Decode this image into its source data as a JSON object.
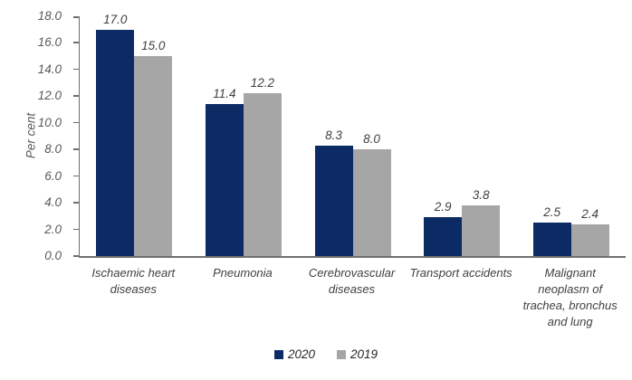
{
  "chart_data": {
    "type": "bar",
    "title": "",
    "ylabel": "Per cent",
    "xlabel": "",
    "ylim": [
      0,
      18
    ],
    "ytick_step": 2,
    "ytick_decimals": 1,
    "value_label_decimals": 1,
    "grid": false,
    "legend_position": "bottom",
    "categories": [
      "Ischaemic heart diseases",
      "Pneumonia",
      "Cerebrovascular diseases",
      "Transport accidents",
      "Malignant neoplasm of trachea, bronchus and lung"
    ],
    "series": [
      {
        "name": "2020",
        "color": "#0c2a63",
        "values": [
          17.0,
          11.4,
          8.3,
          2.9,
          2.5
        ]
      },
      {
        "name": "2019",
        "color": "#a6a6a6",
        "values": [
          15.0,
          12.2,
          8.0,
          3.8,
          2.4
        ]
      }
    ]
  },
  "colors": {
    "axis": "#6f6f6f",
    "tick_text": "#595959",
    "value_label_text": "#404040",
    "category_text": "#404040",
    "legend_text": "#262626",
    "background": "#ffffff"
  }
}
